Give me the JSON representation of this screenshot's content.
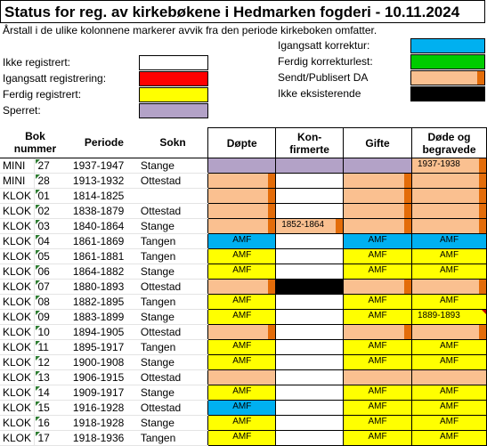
{
  "title": "Status for reg. av kirkebøkene i Hedmarken fogderi - 10.11.2024",
  "note": "Årstall i de ulike kolonnene markerer avvik fra den periode kirkeboken omfatter.",
  "colors": {
    "white": "#ffffff",
    "red": "#ff0000",
    "yellow": "#ffff00",
    "lilac": "#b3a2c7",
    "blue": "#00b0f0",
    "green": "#00cc00",
    "peach": "#fac090",
    "black": "#000000",
    "marker": "#e36c09"
  },
  "legend_left": [
    {
      "label": "Ikke registrert:",
      "color": "white"
    },
    {
      "label": "Igangsatt registrering:",
      "color": "red"
    },
    {
      "label": "Ferdig registrert:",
      "color": "yellow"
    },
    {
      "label": "Sperret:",
      "color": "lilac"
    }
  ],
  "legend_right": [
    {
      "label": "Igangsatt korrektur:",
      "color": "blue"
    },
    {
      "label": "Ferdig korrekturlest:",
      "color": "green"
    },
    {
      "label": "Sendt/Publisert DA",
      "color": "peach"
    },
    {
      "label": "Ikke eksisterende",
      "color": "black"
    }
  ],
  "headers": {
    "bok": "Bok\nnummer",
    "periode": "Periode",
    "sokn": "Sokn",
    "dopte": "Døpte",
    "konf": "Kon-\nfirmerte",
    "gifte": "Gifte",
    "dode": "Døde og\nbegravede"
  },
  "rows": [
    {
      "type": "MINI",
      "num": "27",
      "period": "1937-1947",
      "sokn": "Stange",
      "cells": [
        {
          "c": "lilac"
        },
        {
          "c": "lilac"
        },
        {
          "c": "lilac"
        },
        {
          "c": "peach",
          "m": true,
          "date": "1937-1938"
        }
      ]
    },
    {
      "type": "MINI",
      "num": "28",
      "period": "1913-1932",
      "sokn": "Ottestad",
      "cells": [
        {
          "c": "peach",
          "m": true
        },
        {
          "c": "white"
        },
        {
          "c": "peach",
          "m": true
        },
        {
          "c": "peach",
          "m": true
        }
      ]
    },
    {
      "type": "KLOK",
      "num": "01",
      "period": "1814-1825",
      "sokn": "",
      "cells": [
        {
          "c": "peach",
          "m": true
        },
        {
          "c": "white"
        },
        {
          "c": "peach",
          "m": true
        },
        {
          "c": "peach",
          "m": true
        }
      ]
    },
    {
      "type": "KLOK",
      "num": "02",
      "period": "1838-1879",
      "sokn": "Ottestad",
      "cells": [
        {
          "c": "peach",
          "m": true
        },
        {
          "c": "white"
        },
        {
          "c": "peach",
          "m": true
        },
        {
          "c": "peach",
          "m": true
        }
      ]
    },
    {
      "type": "KLOK",
      "num": "03",
      "period": "1840-1864",
      "sokn": "Stange",
      "cells": [
        {
          "c": "peach",
          "m": true
        },
        {
          "c": "peach",
          "m": true,
          "date": "1852-1864"
        },
        {
          "c": "peach",
          "m": true
        },
        {
          "c": "peach",
          "m": true
        }
      ]
    },
    {
      "type": "KLOK",
      "num": "04",
      "period": "1861-1869",
      "sokn": "Tangen",
      "cells": [
        {
          "c": "blue",
          "t": "AMF"
        },
        {
          "c": "white"
        },
        {
          "c": "blue",
          "t": "AMF"
        },
        {
          "c": "blue",
          "t": "AMF"
        }
      ]
    },
    {
      "type": "KLOK",
      "num": "05",
      "period": "1861-1881",
      "sokn": "Tangen",
      "cells": [
        {
          "c": "yellow",
          "t": "AMF"
        },
        {
          "c": "white"
        },
        {
          "c": "yellow",
          "t": "AMF"
        },
        {
          "c": "yellow",
          "t": "AMF"
        }
      ]
    },
    {
      "type": "KLOK",
      "num": "06",
      "period": "1864-1882",
      "sokn": "Stange",
      "cells": [
        {
          "c": "yellow",
          "t": "AMF"
        },
        {
          "c": "white"
        },
        {
          "c": "yellow",
          "t": "AMF"
        },
        {
          "c": "yellow",
          "t": "AMF"
        }
      ]
    },
    {
      "type": "KLOK",
      "num": "07",
      "period": "1880-1893",
      "sokn": "Ottestad",
      "cells": [
        {
          "c": "peach",
          "m": true
        },
        {
          "c": "black"
        },
        {
          "c": "peach",
          "m": true
        },
        {
          "c": "peach",
          "m": true
        }
      ]
    },
    {
      "type": "KLOK",
      "num": "08",
      "period": "1882-1895",
      "sokn": "Tangen",
      "cells": [
        {
          "c": "yellow",
          "t": "AMF"
        },
        {
          "c": "white"
        },
        {
          "c": "yellow",
          "t": "AMF"
        },
        {
          "c": "yellow",
          "t": "AMF"
        }
      ]
    },
    {
      "type": "KLOK",
      "num": "09",
      "period": "1883-1899",
      "sokn": "Stange",
      "cells": [
        {
          "c": "yellow",
          "t": "AMF"
        },
        {
          "c": "white"
        },
        {
          "c": "yellow",
          "t": "AMF"
        },
        {
          "c": "yellow",
          "date": "1889-1893"
        }
      ]
    },
    {
      "type": "KLOK",
      "num": "10",
      "period": "1894-1905",
      "sokn": "Ottestad",
      "cells": [
        {
          "c": "peach",
          "m": true
        },
        {
          "c": "white"
        },
        {
          "c": "peach",
          "m": true
        },
        {
          "c": "peach",
          "m": true
        }
      ]
    },
    {
      "type": "KLOK",
      "num": "11",
      "period": "1895-1917",
      "sokn": "Tangen",
      "cells": [
        {
          "c": "yellow",
          "t": "AMF"
        },
        {
          "c": "white"
        },
        {
          "c": "yellow",
          "t": "AMF"
        },
        {
          "c": "yellow",
          "t": "AMF"
        }
      ]
    },
    {
      "type": "KLOK",
      "num": "12",
      "period": "1900-1908",
      "sokn": "Stange",
      "cells": [
        {
          "c": "yellow",
          "t": "AMF"
        },
        {
          "c": "white"
        },
        {
          "c": "yellow",
          "t": "AMF"
        },
        {
          "c": "yellow",
          "t": "AMF"
        }
      ]
    },
    {
      "type": "KLOK",
      "num": "13",
      "period": "1906-1915",
      "sokn": "Ottestad",
      "cells": [
        {
          "c": "peach"
        },
        {
          "c": "white"
        },
        {
          "c": "peach"
        },
        {
          "c": "peach"
        }
      ]
    },
    {
      "type": "KLOK",
      "num": "14",
      "period": "1909-1917",
      "sokn": "Stange",
      "cells": [
        {
          "c": "yellow",
          "t": "AMF"
        },
        {
          "c": "white"
        },
        {
          "c": "yellow",
          "t": "AMF"
        },
        {
          "c": "yellow",
          "t": "AMF"
        }
      ]
    },
    {
      "type": "KLOK",
      "num": "15",
      "period": "1916-1928",
      "sokn": "Ottestad",
      "cells": [
        {
          "c": "blue",
          "t": "AMF"
        },
        {
          "c": "white"
        },
        {
          "c": "yellow",
          "t": "AMF"
        },
        {
          "c": "yellow",
          "t": "AMF"
        }
      ]
    },
    {
      "type": "KLOK",
      "num": "16",
      "period": "1918-1928",
      "sokn": "Stange",
      "cells": [
        {
          "c": "yellow",
          "t": "AMF"
        },
        {
          "c": "white"
        },
        {
          "c": "yellow",
          "t": "AMF"
        },
        {
          "c": "yellow",
          "t": "AMF"
        }
      ]
    },
    {
      "type": "KLOK",
      "num": "17",
      "period": "1918-1936",
      "sokn": "Tangen",
      "cells": [
        {
          "c": "yellow",
          "t": "AMF"
        },
        {
          "c": "white"
        },
        {
          "c": "yellow",
          "t": "AMF"
        },
        {
          "c": "yellow",
          "t": "AMF"
        }
      ]
    }
  ]
}
